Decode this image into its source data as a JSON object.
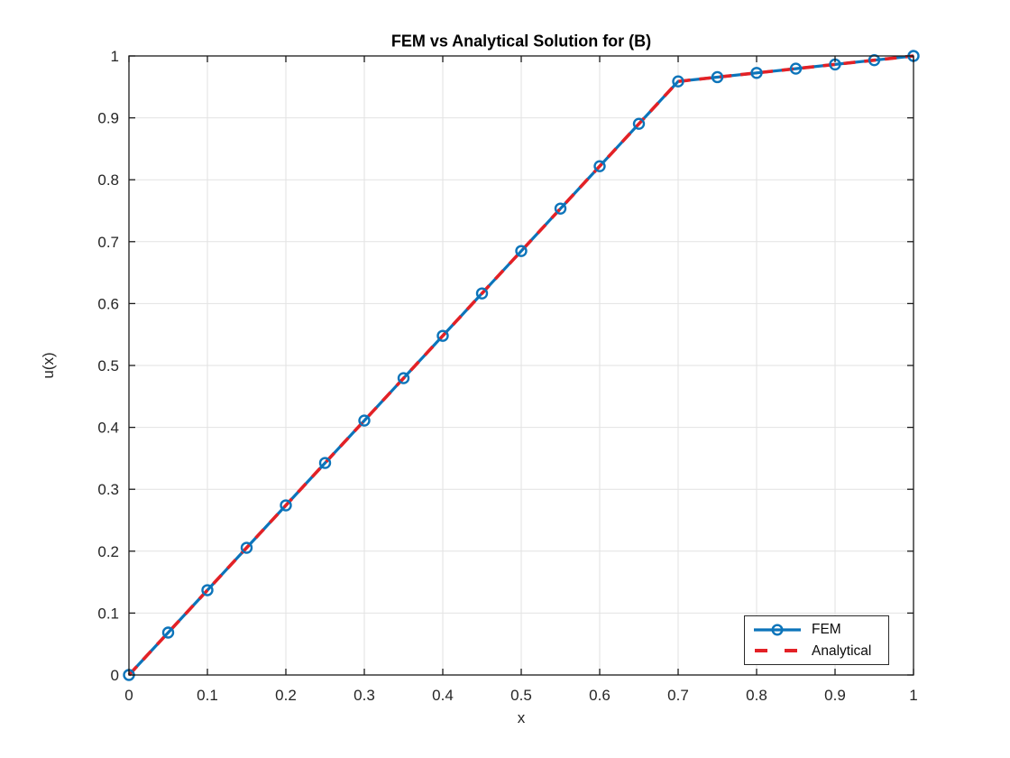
{
  "accent_colors": {
    "fem_blue": "#0c74ba",
    "analytical_red": "#e32126",
    "grid_gray": "#e2e2e2",
    "axis_dark": "#1a1a1a"
  },
  "chart_data": {
    "type": "line",
    "title": "FEM vs Analytical Solution for (B)",
    "xlabel": "x",
    "ylabel": "u(x)",
    "xlim": [
      0,
      1
    ],
    "ylim": [
      0,
      1
    ],
    "grid": true,
    "legend_position": "southeast",
    "xticks": [
      0,
      0.1,
      0.2,
      0.3,
      0.4,
      0.5,
      0.6,
      0.7,
      0.8,
      0.9,
      1
    ],
    "xtick_labels": [
      "0",
      "0.1",
      "0.2",
      "0.3",
      "0.4",
      "0.5",
      "0.6",
      "0.7",
      "0.8",
      "0.9",
      "1"
    ],
    "yticks": [
      0,
      0.1,
      0.2,
      0.3,
      0.4,
      0.5,
      0.6,
      0.7,
      0.8,
      0.9,
      1
    ],
    "ytick_labels": [
      "0",
      "0.1",
      "0.2",
      "0.3",
      "0.4",
      "0.5",
      "0.6",
      "0.7",
      "0.8",
      "0.9",
      "1"
    ],
    "x": [
      0,
      0.05,
      0.1,
      0.15,
      0.2,
      0.25,
      0.3,
      0.35,
      0.4,
      0.45,
      0.5,
      0.55,
      0.6,
      0.65,
      0.7,
      0.75,
      0.8,
      0.85,
      0.9,
      0.95,
      1
    ],
    "series": [
      {
        "name": "FEM",
        "color": "#0c74ba",
        "line_style": "solid",
        "marker": "circle",
        "values": [
          0,
          0.0685,
          0.137,
          0.2055,
          0.274,
          0.3425,
          0.411,
          0.4795,
          0.5479,
          0.6164,
          0.6849,
          0.7534,
          0.8219,
          0.8904,
          0.9589,
          0.9658,
          0.9726,
          0.9795,
          0.9863,
          0.9932,
          1.0
        ]
      },
      {
        "name": "Analytical",
        "color": "#e32126",
        "line_style": "dashed",
        "marker": "none",
        "values": [
          0,
          0.0685,
          0.137,
          0.2055,
          0.274,
          0.3425,
          0.411,
          0.4795,
          0.5479,
          0.6164,
          0.6849,
          0.7534,
          0.8219,
          0.8904,
          0.9589,
          0.9658,
          0.9726,
          0.9795,
          0.9863,
          0.9932,
          1.0
        ]
      }
    ]
  }
}
